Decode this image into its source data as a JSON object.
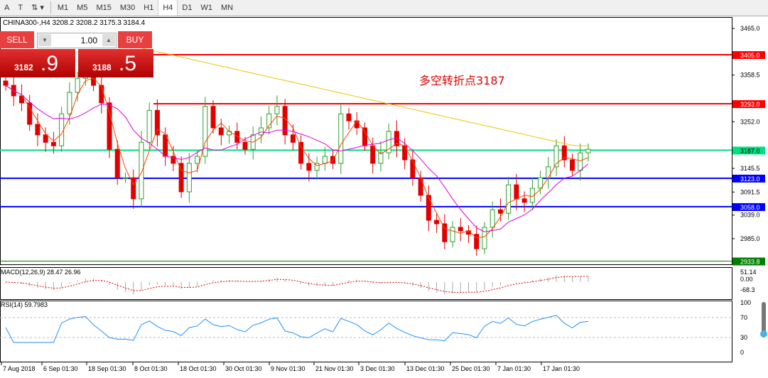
{
  "toolbar": {
    "items": [
      "A",
      "T",
      "M1",
      "M5",
      "M15",
      "M30",
      "H1",
      "H4",
      "D1",
      "W1",
      "MN"
    ],
    "selected": "H4"
  },
  "symbol": {
    "label": "CHINA300-,H4  3208.2 3208.2 3175.3 3184.4"
  },
  "trade": {
    "sell_label": "SELL",
    "buy_label": "BUY",
    "lot": "1.00",
    "sell_small": "3182",
    "sell_big": ".9",
    "buy_small": "3188",
    "buy_big": ".5"
  },
  "annotation": "多空转折点3187",
  "colors": {
    "up": "#2ca02c",
    "down": "#e00000",
    "sma_short": "#ff4000",
    "sma_mid": "#e000e0",
    "sma_long": "#f0c000"
  },
  "chart_data": {
    "type": "candlestick",
    "ylim": [
      2933.8,
      3490
    ],
    "y_ticks": [
      "3465.0",
      "3358.5",
      "3252.0",
      "3145.5",
      "3091.5",
      "3039.0",
      "2985.0"
    ],
    "closes": [
      3335,
      3311,
      3295,
      3246,
      3222,
      3205,
      3197,
      3270,
      3319,
      3351,
      3368,
      3335,
      3295,
      3189,
      3124,
      3124,
      3076,
      3205,
      3278,
      3222,
      3173,
      3157,
      3092,
      3157,
      3173,
      3287,
      3238,
      3222,
      3230,
      3205,
      3189,
      3222,
      3238,
      3270,
      3287,
      3222,
      3205,
      3157,
      3141,
      3157,
      3173,
      3157,
      3270,
      3254,
      3238,
      3197,
      3157,
      3181,
      3230,
      3197,
      3165,
      3124,
      3084,
      3027,
      3019,
      2978,
      3011,
      3003,
      2995,
      2962,
      3011,
      3051,
      3043,
      3108,
      3076,
      3068,
      3100,
      3124,
      3149,
      3197,
      3165,
      3141,
      3181,
      3189
    ],
    "levels": [
      {
        "value": "3405.0",
        "color": "#ff0000"
      },
      {
        "value": "3293.0",
        "color": "#ff0000"
      },
      {
        "value": "3187.0",
        "color": "#00e080"
      },
      {
        "value": "3123.0",
        "color": "#0000ff"
      },
      {
        "value": "3058.0",
        "color": "#0000ff"
      },
      {
        "value": "2933.8",
        "color": "#008000"
      }
    ],
    "x_labels": [
      "7 Aug 2018",
      "6 Sep 01:30",
      "18 Sep 01:30",
      "8 Oct 01:30",
      "18 Oct 01:30",
      "30 Oct 01:30",
      "9 Nov 01:30",
      "21 Nov 01:30",
      "3 Dec 01:30",
      "13 Dec 01:30",
      "25 Dec 01:30",
      "7 Jan 01:30",
      "17 Jan 01:30"
    ],
    "macd": {
      "label": "MACD(12,26,9) 28.47 26.96",
      "ticks": [
        "51.14",
        "0.00",
        "-68.3"
      ]
    },
    "rsi": {
      "label": "RSI(14) 59.7983",
      "ticks": [
        "100",
        "70",
        "30",
        "0"
      ]
    }
  }
}
